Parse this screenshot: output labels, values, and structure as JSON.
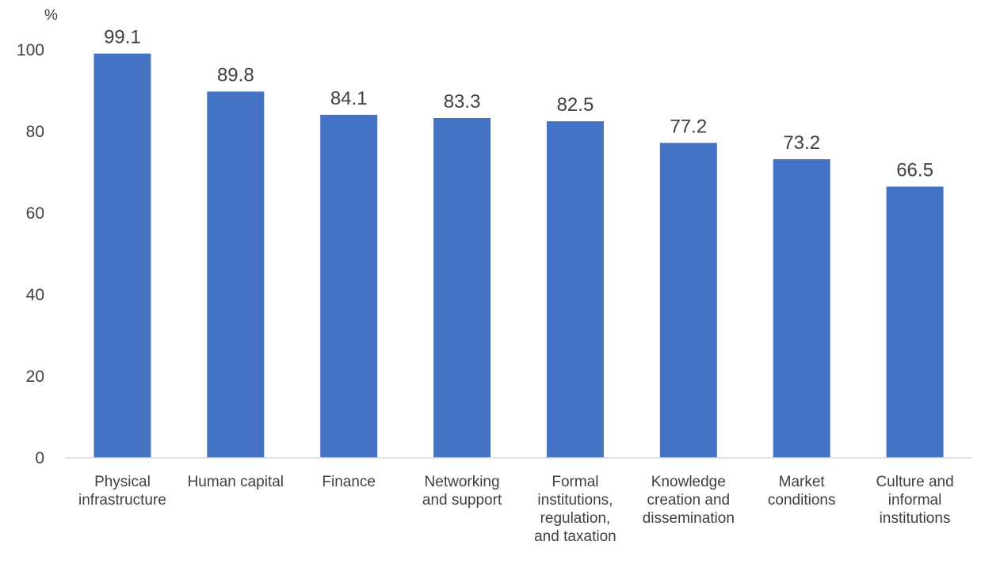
{
  "chart_data": {
    "type": "bar",
    "title": "",
    "xlabel": "",
    "ylabel": "%",
    "ylim": [
      0,
      100
    ],
    "yticks": [
      0,
      20,
      40,
      60,
      80,
      100
    ],
    "grid": false,
    "legend": "none",
    "categories": [
      [
        "Physical",
        "infrastructure"
      ],
      [
        "Human capital"
      ],
      [
        "Finance"
      ],
      [
        "Networking",
        "and support"
      ],
      [
        "Formal",
        "institutions,",
        "regulation,",
        "and taxation"
      ],
      [
        "Knowledge",
        "creation and",
        "dissemination"
      ],
      [
        "Market",
        "conditions"
      ],
      [
        "Culture and",
        "informal",
        "institutions"
      ]
    ],
    "values": [
      99.1,
      89.8,
      84.1,
      83.3,
      82.5,
      77.2,
      73.2,
      66.5
    ],
    "data_labels": [
      "99.1",
      "89.8",
      "84.1",
      "83.3",
      "82.5",
      "77.2",
      "73.2",
      "66.5"
    ],
    "colors": {
      "bar": "#4472C4",
      "axis": "#D9D9D9",
      "text": "#404040"
    }
  }
}
